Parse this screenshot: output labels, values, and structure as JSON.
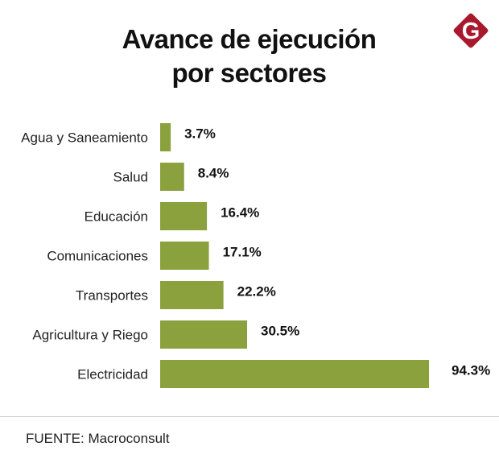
{
  "logo": {
    "text": "G",
    "color": "#a8192e"
  },
  "chart_data": {
    "type": "bar",
    "orientation": "horizontal",
    "title": [
      "Avance de ejecución",
      "por sectores"
    ],
    "categories": [
      "Agua y Saneamiento",
      "Salud",
      "Educación",
      "Comunicaciones",
      "Transportes",
      "Agricultura y Riego",
      "Electricidad"
    ],
    "values": [
      3.7,
      8.4,
      16.4,
      17.1,
      22.2,
      30.5,
      94.3
    ],
    "labels": [
      "3.7%",
      "8.4%",
      "16.4%",
      "17.1%",
      "22.2%",
      "30.5%",
      "94.3%"
    ],
    "xlim": [
      0,
      100
    ],
    "grid": false,
    "bar_color": "#8aa13e"
  },
  "source": "FUENTE: Macroconsult"
}
